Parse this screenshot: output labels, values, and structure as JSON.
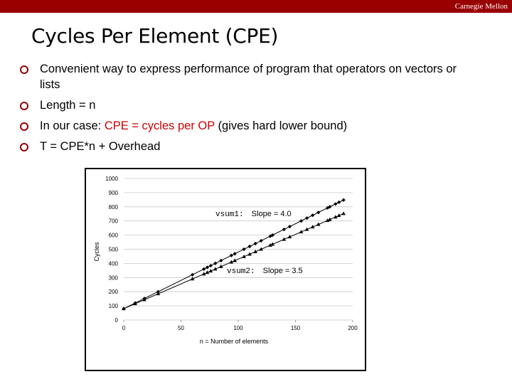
{
  "header": {
    "brand": "Carnegie Mellon",
    "bar_color": "#990000"
  },
  "slide": {
    "title": "Cycles Per Element (CPE)",
    "bullets": {
      "b1": "Convenient way to express performance of program that operators on vectors or lists",
      "b2": "Length = n",
      "b3_prefix": "In our case: ",
      "b3_highlight": "CPE = cycles per OP",
      "b3_suffix": " (gives hard lower bound)",
      "b4": "T = CPE*n + Overhead"
    }
  },
  "chart_data": {
    "type": "scatter",
    "xlabel": "n = Number of elements",
    "ylabel": "Cycles",
    "xlim": [
      0,
      200
    ],
    "ylim": [
      0,
      1000
    ],
    "x_ticks": [
      0,
      50,
      100,
      150,
      200
    ],
    "y_ticks": [
      0,
      100,
      200,
      300,
      400,
      500,
      600,
      700,
      800,
      900,
      1000
    ],
    "grid": "horizontal",
    "series": [
      {
        "name": "vsum1",
        "marker": "diamond",
        "x": [
          0,
          10,
          18,
          30,
          60,
          70,
          73,
          76,
          80,
          85,
          94,
          97,
          105,
          110,
          115,
          120,
          128,
          130,
          140,
          145,
          155,
          160,
          165,
          170,
          178,
          180,
          185,
          188,
          192
        ],
        "y": [
          80,
          120,
          152,
          200,
          320,
          360,
          372,
          384,
          400,
          420,
          456,
          468,
          500,
          520,
          540,
          560,
          592,
          600,
          640,
          660,
          700,
          720,
          740,
          760,
          792,
          800,
          820,
          832,
          848
        ]
      },
      {
        "name": "vsum2",
        "marker": "triangle",
        "x": [
          0,
          10,
          18,
          30,
          60,
          70,
          73,
          76,
          80,
          85,
          94,
          97,
          105,
          110,
          115,
          120,
          128,
          130,
          140,
          145,
          155,
          160,
          165,
          170,
          178,
          180,
          185,
          188,
          192
        ],
        "y": [
          80,
          115,
          143,
          185,
          290,
          325,
          335.5,
          346,
          360,
          377.5,
          409,
          419.5,
          447.5,
          465,
          482.5,
          500,
          528,
          535,
          570,
          587.5,
          622.5,
          640,
          657.5,
          675,
          703,
          710,
          727.5,
          738,
          752
        ]
      }
    ],
    "annotations": [
      {
        "code": "vsum1:",
        "text": "Slope = 4.0"
      },
      {
        "code": "vsum2:",
        "text": "Slope = 3.5"
      }
    ]
  }
}
